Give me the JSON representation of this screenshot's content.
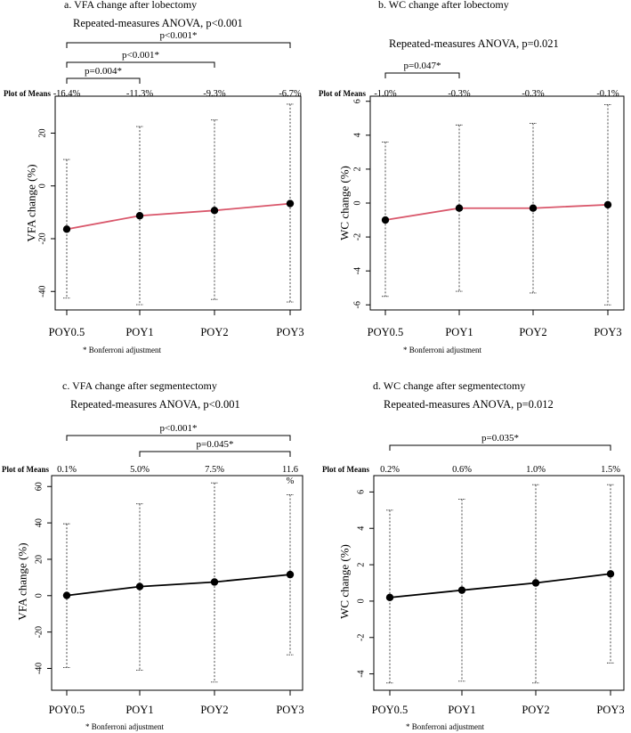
{
  "chart_data": [
    {
      "type": "line",
      "title": "a. VFA change after lobectomy",
      "subtitle": "Repeated-measures ANOVA, p<0.001",
      "ylabel": "VFA change (%)",
      "xlabel": "",
      "categories": [
        "POY0.5",
        "POY1",
        "POY2",
        "POY3"
      ],
      "values": [
        -16.4,
        -11.3,
        -9.3,
        -6.7
      ],
      "error_low": [
        -42.5,
        -45,
        -43,
        -44
      ],
      "error_high": [
        10,
        22.5,
        25,
        31
      ],
      "mean_label_header": "Plot of Means",
      "mean_labels": [
        "-16.4%",
        "-11.3%",
        "-9.3%",
        "-6.7%"
      ],
      "ylim": [
        -47,
        34
      ],
      "yticks": [
        20,
        0,
        -20,
        -40
      ],
      "ytick_labels": [
        "20",
        "0",
        "-20",
        "-40"
      ],
      "line_color": "#d9576b",
      "comparisons": [
        {
          "label": "p<0.001*",
          "from": 0,
          "to": 3
        },
        {
          "label": "p<0.001*",
          "from": 0,
          "to": 2
        },
        {
          "label": "p=0.004*",
          "from": 0,
          "to": 1
        }
      ],
      "footnote": "* Bonferroni adjustment"
    },
    {
      "type": "line",
      "title": "b. WC change after lobectomy",
      "subtitle": "Repeated-measures ANOVA, p=0.021",
      "ylabel": "WC change (%)",
      "xlabel": "",
      "categories": [
        "POY0.5",
        "POY1",
        "POY2",
        "POY3"
      ],
      "values": [
        -1.0,
        -0.3,
        -0.3,
        -0.1
      ],
      "error_low": [
        -5.5,
        -5.2,
        -5.3,
        -6
      ],
      "error_high": [
        3.6,
        4.6,
        4.7,
        5.8
      ],
      "mean_label_header": "Plot of Means",
      "mean_labels": [
        "-1.0%",
        "-0.3%",
        "-0.3%",
        "-0.1%"
      ],
      "ylim": [
        -6.3,
        6.3
      ],
      "yticks": [
        6,
        4,
        2,
        0,
        -2,
        -4,
        -6
      ],
      "ytick_labels": [
        "6",
        "4",
        "2",
        "0",
        "-2",
        "-4",
        "-6"
      ],
      "line_color": "#d9576b",
      "comparisons": [
        {
          "label": "p=0.047*",
          "from": 0,
          "to": 1
        }
      ],
      "footnote": "* Bonferroni adjustment"
    },
    {
      "type": "line",
      "title": "c. VFA change after segmentectomy",
      "subtitle": "Repeated-measures ANOVA, p<0.001",
      "ylabel": "VFA change (%)",
      "xlabel": "",
      "categories": [
        "POY0.5",
        "POY1",
        "POY2",
        "POY3"
      ],
      "values": [
        0.1,
        5.0,
        7.5,
        11.6
      ],
      "error_low": [
        -39.5,
        -41,
        -47.5,
        -32.5
      ],
      "error_high": [
        39.5,
        50.5,
        62,
        55.5
      ],
      "mean_label_header": "Plot of Means",
      "mean_labels": [
        "0.1%",
        "5.0%",
        "7.5%",
        "11.6"
      ],
      "mean_label_extra": "%",
      "ylim": [
        -52,
        66
      ],
      "yticks": [
        60,
        40,
        20,
        0,
        -20,
        -40
      ],
      "ytick_labels": [
        "60",
        "40",
        "20",
        "0",
        "-20",
        "-40"
      ],
      "line_color": "#000000",
      "comparisons": [
        {
          "label": "p<0.001*",
          "from": 0,
          "to": 3
        },
        {
          "label": "p=0.045*",
          "from": 1,
          "to": 3
        }
      ],
      "footnote": "* Bonferroni adjustment"
    },
    {
      "type": "line",
      "title": "d. WC change after segmentectomy",
      "subtitle": "Repeated-measures ANOVA, p=0.012",
      "ylabel": "WC change (%)",
      "xlabel": "",
      "categories": [
        "POY0.5",
        "POY1",
        "POY2",
        "POY3"
      ],
      "values": [
        0.2,
        0.6,
        1.0,
        1.5
      ],
      "error_low": [
        -4.5,
        -4.4,
        -4.5,
        -3.4
      ],
      "error_high": [
        5.0,
        5.6,
        6.4,
        6.4
      ],
      "mean_label_header": "Plot of Means",
      "mean_labels": [
        "0.2%",
        "0.6%",
        "1.0%",
        "1.5%"
      ],
      "ylim": [
        -4.9,
        6.9
      ],
      "yticks": [
        6,
        4,
        2,
        0,
        -2,
        -4
      ],
      "ytick_labels": [
        "6",
        "4",
        "2",
        "0",
        "-2",
        "-4"
      ],
      "line_color": "#000000",
      "comparisons": [
        {
          "label": "p=0.035*",
          "from": 0,
          "to": 3
        }
      ],
      "footnote": "* Bonferroni adjustment"
    }
  ]
}
